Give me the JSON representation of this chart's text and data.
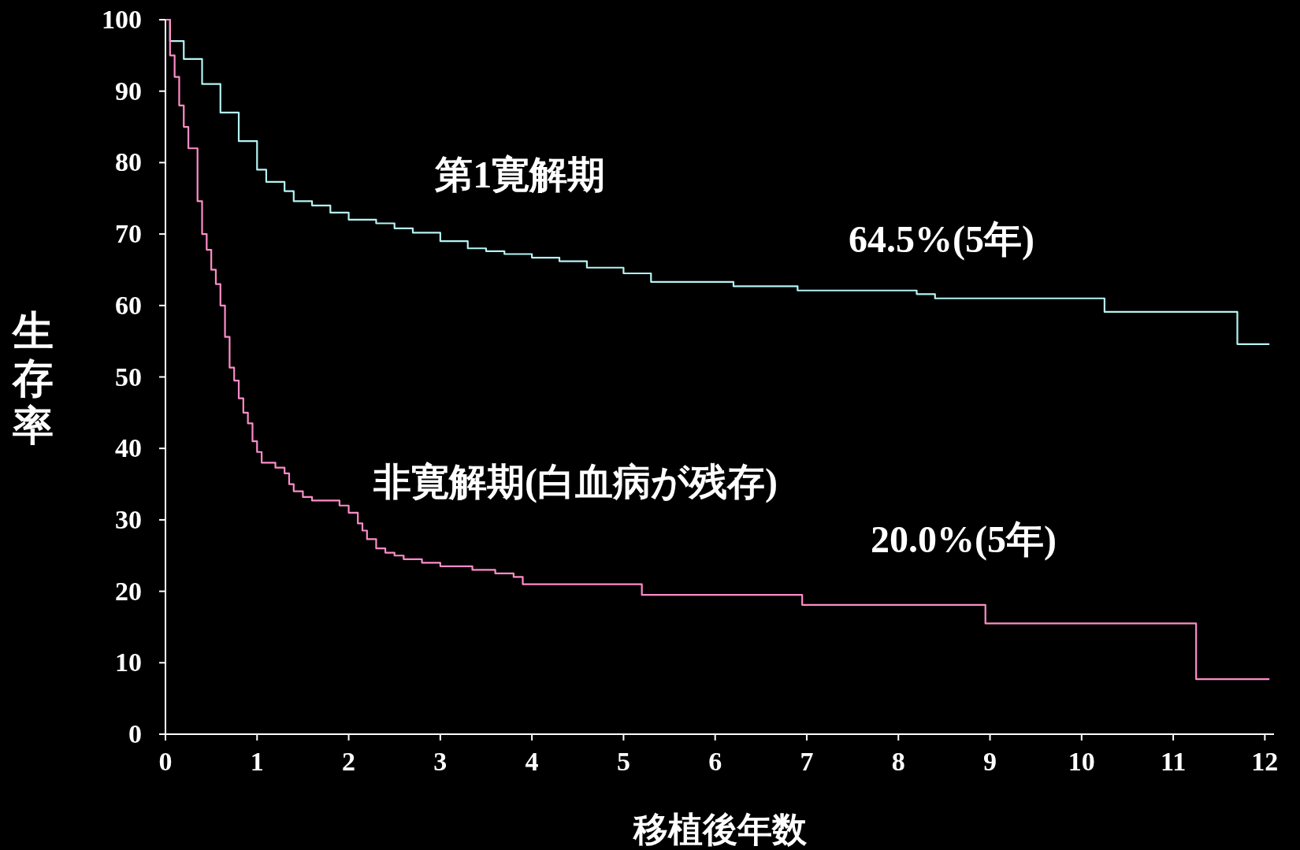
{
  "chart_data": {
    "type": "step",
    "xlabel": "移植後年数",
    "ylabel": "生存率",
    "xlim": [
      0,
      12.1
    ],
    "ylim": [
      0,
      100
    ],
    "xticks": [
      0,
      1,
      2,
      3,
      4,
      5,
      6,
      7,
      8,
      9,
      10,
      11,
      12
    ],
    "yticks": [
      0,
      10,
      20,
      30,
      40,
      50,
      60,
      70,
      80,
      90,
      100
    ],
    "grid": false,
    "marker": "none",
    "line_style": "solid",
    "series": [
      {
        "name": "第1寛解期",
        "color": "#b4f4f4",
        "x": [
          0,
          0.05,
          0.2,
          0.4,
          0.6,
          0.8,
          1.0,
          1.1,
          1.3,
          1.4,
          1.6,
          1.8,
          2.0,
          2.3,
          2.5,
          2.7,
          3.0,
          3.3,
          3.5,
          3.7,
          4.0,
          4.3,
          4.6,
          5.0,
          5.3,
          6.2,
          6.9,
          8.2,
          8.4,
          10.25,
          11.7,
          12.05
        ],
        "values": [
          100,
          97,
          94.5,
          91,
          87,
          83,
          79,
          77.3,
          76,
          74.6,
          74,
          73,
          72,
          71.5,
          70.8,
          70.2,
          69,
          68,
          67.6,
          67.2,
          66.7,
          66.2,
          65.3,
          64.5,
          63.3,
          62.7,
          62.1,
          61.6,
          61,
          59.1,
          54.6,
          54.6
        ]
      },
      {
        "name": "非寛解期(白血病が残存)",
        "color": "#ff8cc8",
        "x": [
          0,
          0.05,
          0.1,
          0.15,
          0.2,
          0.25,
          0.35,
          0.4,
          0.45,
          0.5,
          0.55,
          0.6,
          0.65,
          0.7,
          0.75,
          0.8,
          0.85,
          0.9,
          0.95,
          1.0,
          1.05,
          1.2,
          1.3,
          1.35,
          1.4,
          1.5,
          1.6,
          1.9,
          2.0,
          2.1,
          2.15,
          2.2,
          2.3,
          2.4,
          2.5,
          2.6,
          2.8,
          3.0,
          3.35,
          3.6,
          3.8,
          3.9,
          5.2,
          6.95,
          8.95,
          11.25,
          12.05
        ],
        "values": [
          100,
          95,
          92,
          88,
          85,
          82,
          74.6,
          70,
          67.8,
          65,
          63,
          60,
          55.6,
          51.3,
          49.5,
          47,
          45,
          43.5,
          41,
          39.5,
          38,
          37.3,
          36.5,
          35,
          34,
          33.2,
          32.7,
          32,
          31,
          29.5,
          28.5,
          27.3,
          26,
          25.4,
          25,
          24.5,
          24,
          23.5,
          23,
          22.5,
          22,
          21,
          19.5,
          18.1,
          15.5,
          7.7,
          7.7
        ]
      }
    ],
    "annotations": [
      "64.5%(5年)",
      "20.0%(5年)"
    ]
  }
}
